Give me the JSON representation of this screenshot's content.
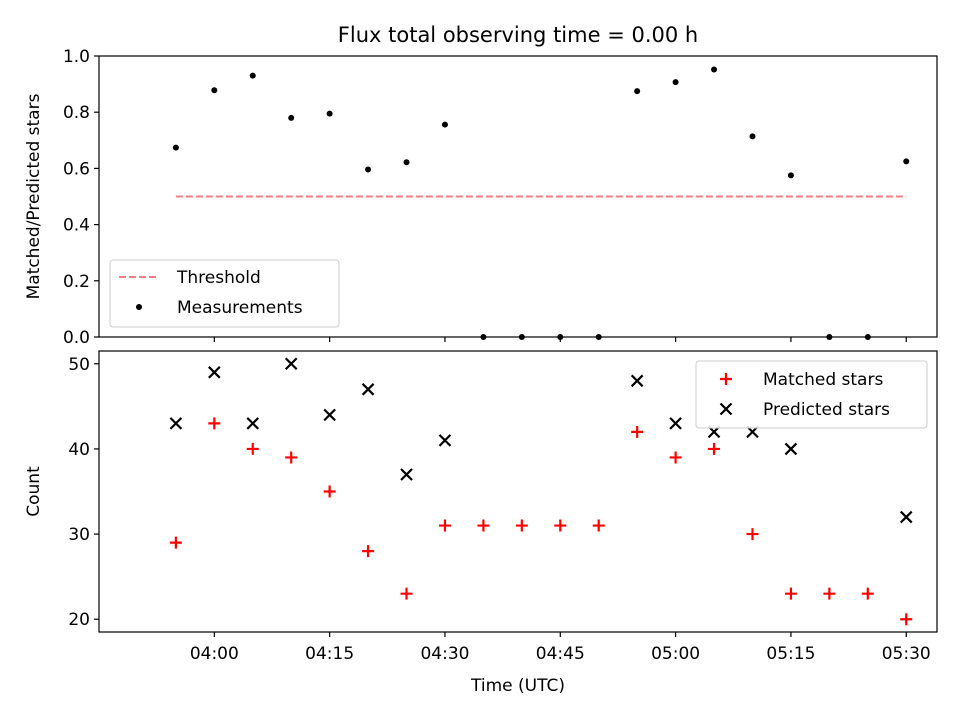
{
  "chart_data": [
    {
      "type": "scatter",
      "title": "Flux total observing time = 0.00 h",
      "xlabel": "",
      "ylabel": "Matched/Predicted stars",
      "ylim": [
        0,
        1.0
      ],
      "yticks": [
        0.0,
        0.2,
        0.4,
        0.6,
        0.8,
        1.0
      ],
      "ytick_labels": [
        "0.0",
        "0.2",
        "0.4",
        "0.6",
        "0.8",
        "1.0"
      ],
      "xlim": [
        "03:45",
        "05:34"
      ],
      "grid": false,
      "legend_position": "lower-left",
      "series": [
        {
          "name": "Threshold",
          "style": "dashed-line",
          "color": "#f08080",
          "x": [
            "03:55",
            "05:30"
          ],
          "values": [
            0.5,
            0.5
          ]
        },
        {
          "name": "Measurements",
          "style": "dot",
          "color": "#000000",
          "x": [
            "03:55",
            "04:00",
            "04:05",
            "04:10",
            "04:15",
            "04:20",
            "04:25",
            "04:30",
            "04:35",
            "04:40",
            "04:45",
            "04:50",
            "04:55",
            "05:00",
            "05:05",
            "05:10",
            "05:15",
            "05:20",
            "05:25",
            "05:30"
          ],
          "values": [
            0.674,
            0.878,
            0.93,
            0.78,
            0.795,
            0.596,
            0.622,
            0.756,
            0.0,
            0.0,
            0.0,
            0.0,
            0.875,
            0.907,
            0.952,
            0.714,
            0.575,
            0.0,
            0.0,
            0.625
          ]
        }
      ]
    },
    {
      "type": "scatter",
      "title": "",
      "xlabel": "Time (UTC)",
      "ylabel": "Count",
      "ylim": [
        18.5,
        51.5
      ],
      "yticks": [
        20,
        30,
        40,
        50
      ],
      "ytick_labels": [
        "20",
        "30",
        "40",
        "50"
      ],
      "xlim": [
        "03:45",
        "05:34"
      ],
      "xticks": [
        "04:00",
        "04:15",
        "04:30",
        "04:45",
        "05:00",
        "05:15",
        "05:30"
      ],
      "grid": false,
      "legend_position": "top-right",
      "series": [
        {
          "name": "Matched stars",
          "style": "plus",
          "color": "#ff0000",
          "x": [
            "03:55",
            "04:00",
            "04:05",
            "04:10",
            "04:15",
            "04:20",
            "04:25",
            "04:30",
            "04:35",
            "04:40",
            "04:45",
            "04:50",
            "04:55",
            "05:00",
            "05:05",
            "05:10",
            "05:15",
            "05:20",
            "05:25",
            "05:30"
          ],
          "values": [
            29,
            43,
            40,
            39,
            35,
            28,
            23,
            31,
            31,
            31,
            31,
            31,
            42,
            39,
            40,
            30,
            23,
            23,
            23,
            20
          ]
        },
        {
          "name": "Predicted stars",
          "style": "cross",
          "color": "#000000",
          "x": [
            "03:55",
            "04:00",
            "04:05",
            "04:10",
            "04:15",
            "04:20",
            "04:25",
            "04:30",
            "04:55",
            "05:00",
            "05:05",
            "05:10",
            "05:15",
            "05:30"
          ],
          "values": [
            43,
            49,
            43,
            50,
            44,
            47,
            37,
            41,
            48,
            43,
            42,
            42,
            40,
            32
          ]
        }
      ]
    }
  ]
}
